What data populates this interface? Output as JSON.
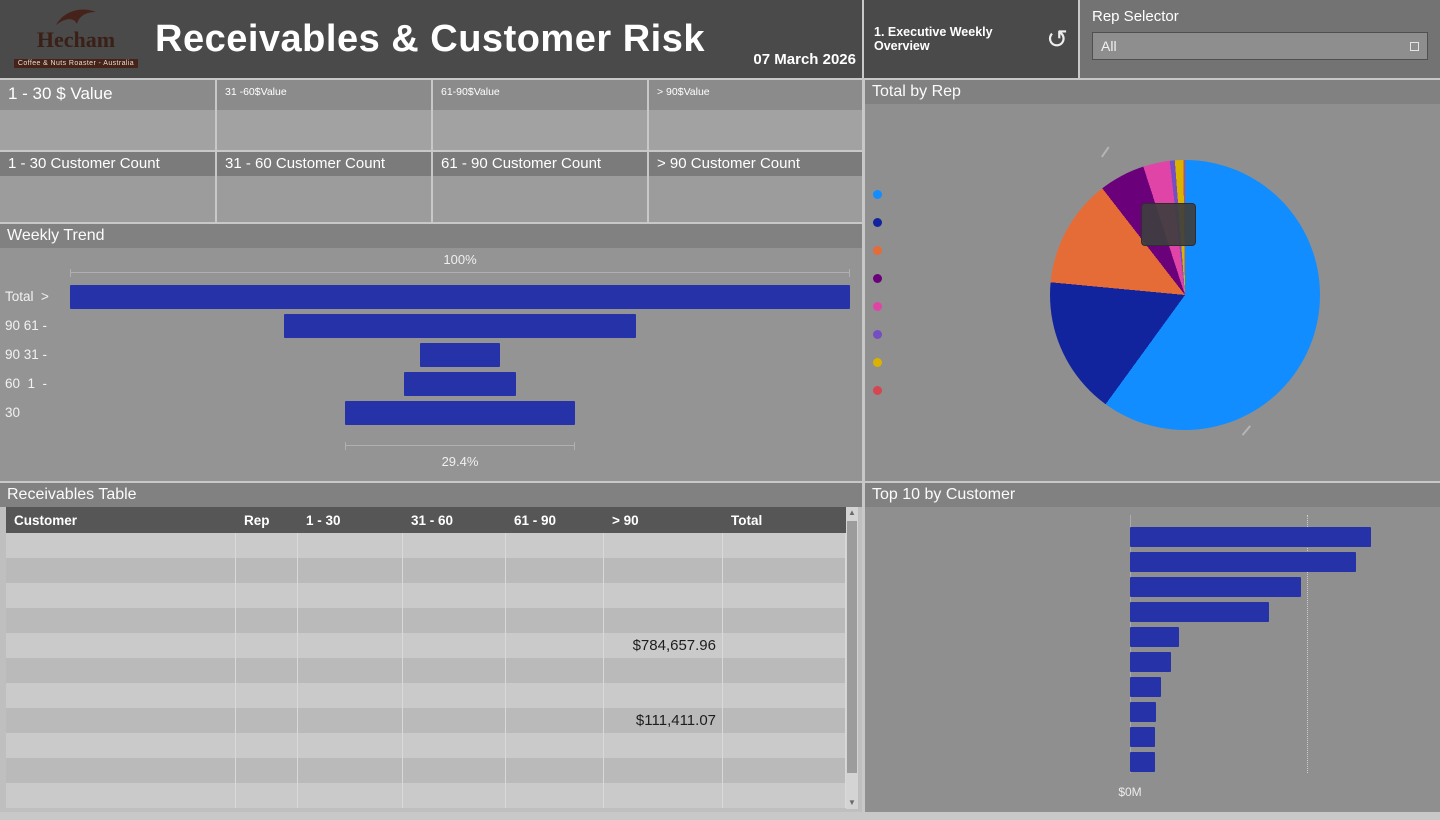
{
  "colors": {
    "primary_bar": "#2633A8",
    "header_bg": "#4A4A4A"
  },
  "header": {
    "brand": {
      "name": "Hecham",
      "tagline": "Coffee & Nuts Roaster - Australia"
    },
    "title": "Receivables & Customer Risk",
    "date": "07 March 2026",
    "bookmark_button": "1. Executive Weekly Overview",
    "rep_selector": {
      "label": "Rep Selector",
      "value": "All"
    }
  },
  "kpi_value_cards": [
    {
      "title": "1 - 30 $ Value"
    },
    {
      "title": "31 -60$Value"
    },
    {
      "title": "61-90$Value"
    },
    {
      "title": "> 90$Value"
    }
  ],
  "kpi_count_cards": [
    {
      "title": "1 - 30 Customer Count"
    },
    {
      "title": "31 - 60 Customer Count"
    },
    {
      "title": "61 - 90 Customer Count"
    },
    {
      "title": "> 90 Customer Count"
    }
  ],
  "weekly_trend": {
    "title": "Weekly Trend",
    "top_label": "100%",
    "bottom_label": "29.4%",
    "axis_label_lines": [
      "Total  >",
      "90 61 -",
      "90 31 -",
      "60  1  -",
      "30"
    ]
  },
  "total_by_rep": {
    "title": "Total by Rep"
  },
  "receivables_table": {
    "title": "Receivables Table",
    "columns": [
      "Customer",
      "Rep",
      "1 - 30",
      "31 - 60",
      "61 - 90",
      "> 90",
      "Total"
    ],
    "rows": [
      [
        "",
        "",
        "",
        "",
        "",
        "",
        ""
      ],
      [
        "",
        "",
        "",
        "",
        "",
        "",
        ""
      ],
      [
        "",
        "",
        "",
        "",
        "",
        "",
        ""
      ],
      [
        "",
        "",
        "",
        "",
        "",
        "",
        ""
      ],
      [
        "",
        "",
        "",
        "",
        "",
        "$784,657.96",
        ""
      ],
      [
        "",
        "",
        "",
        "",
        "",
        "",
        ""
      ],
      [
        "",
        "",
        "",
        "",
        "",
        "",
        ""
      ],
      [
        "",
        "",
        "",
        "",
        "",
        "$111,411.07",
        ""
      ],
      [
        "",
        "",
        "",
        "",
        "",
        "",
        ""
      ],
      [
        "",
        "",
        "",
        "",
        "",
        "",
        ""
      ],
      [
        "",
        "",
        "",
        "",
        "",
        "",
        ""
      ]
    ]
  },
  "top10": {
    "title": "Top 10 by Customer",
    "x_axis_tick": "$0M"
  },
  "chart_data": [
    {
      "type": "bar",
      "subtype": "funnel",
      "title": "Weekly Trend",
      "categories": [
        "Total",
        "> 90",
        "61 - 90",
        "31 - 60",
        "1 - 30"
      ],
      "values_pct": [
        100,
        45.1,
        10.3,
        14.4,
        29.4
      ],
      "first_annotation": "100%",
      "last_annotation": "29.4%",
      "legend_position": "none"
    },
    {
      "type": "pie",
      "title": "Total by Rep",
      "slices": [
        {
          "label": "",
          "color": "#118DFF",
          "pct": 60.0
        },
        {
          "label": "",
          "color": "#12239E",
          "pct": 16.5
        },
        {
          "label": "",
          "color": "#E66C37",
          "pct": 13.0
        },
        {
          "label": "",
          "color": "#6B007B",
          "pct": 5.5
        },
        {
          "label": "",
          "color": "#E044A7",
          "pct": 3.2
        },
        {
          "label": "",
          "color": "#744EC2",
          "pct": 0.6
        },
        {
          "label": "",
          "color": "#D9B300",
          "pct": 1.0
        },
        {
          "label": "",
          "color": "#D64550",
          "pct": 0.2
        }
      ],
      "legend_position": "left"
    },
    {
      "type": "bar",
      "orientation": "horizontal",
      "title": "Top 10 by Customer",
      "values_pct_of_max": [
        100,
        93.8,
        71,
        57.7,
        20.3,
        17,
        12.9,
        10.8,
        10.4,
        10.4
      ],
      "x_tick_labels": [
        "$0M"
      ],
      "grid": "dotted-vertical"
    }
  ]
}
